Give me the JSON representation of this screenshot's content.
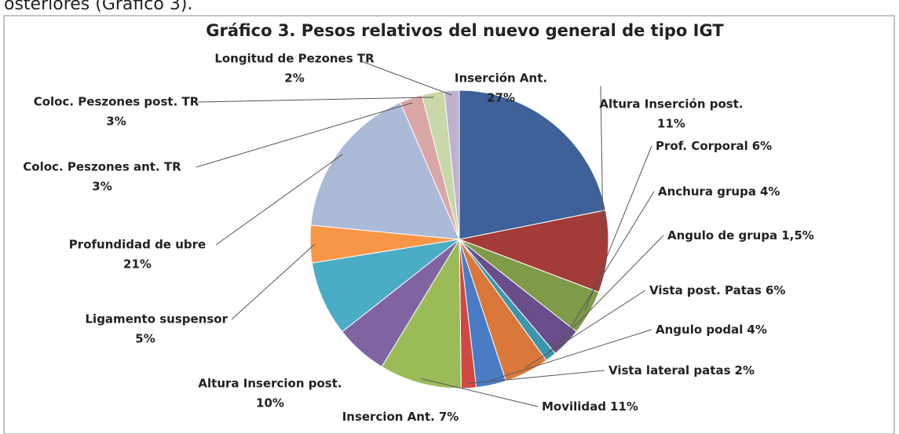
{
  "page_text": "osteriores (Gráfico 3).",
  "chart_data": {
    "type": "pie",
    "title": "Gráfico 3. Pesos relativos del nuevo general de tipo IGT",
    "categories": [
      "Inserción Ant.",
      "Altura Inserción post.",
      "Prof. Corporal",
      "Anchura grupa",
      "Angulo de grupa",
      "Vista post. Patas",
      "Angulo podal",
      "Vista lateral patas",
      "Movilidad",
      "Insercion Ant.",
      "Altura Insercion post.",
      "Ligamento suspensor",
      "Profundidad de ubre",
      "Coloc. Peszones ant. TR",
      "Coloc. Peszones post. TR",
      "Longitud de Pezones TR"
    ],
    "values": [
      27,
      11,
      6,
      4,
      1.5,
      6,
      4,
      2,
      11,
      7,
      10,
      5,
      21,
      3,
      3,
      2
    ],
    "value_labels": [
      "27%",
      "11%",
      "6%",
      "4%",
      "1,5%",
      "6%",
      "4%",
      "2%",
      "11%",
      "7%",
      "10%",
      "5%",
      "21%",
      "3%",
      "3%",
      "2%"
    ],
    "colors": [
      "#3d6198",
      "#a33b39",
      "#7f9a48",
      "#6a4e8b",
      "#3c96ae",
      "#d9783a",
      "#4a7cc6",
      "#d04844",
      "#9bbb59",
      "#8064a2",
      "#4bacc6",
      "#f79646",
      "#aabad7",
      "#d9a6a5",
      "#c8d8a8",
      "#bfb1d0"
    ]
  }
}
